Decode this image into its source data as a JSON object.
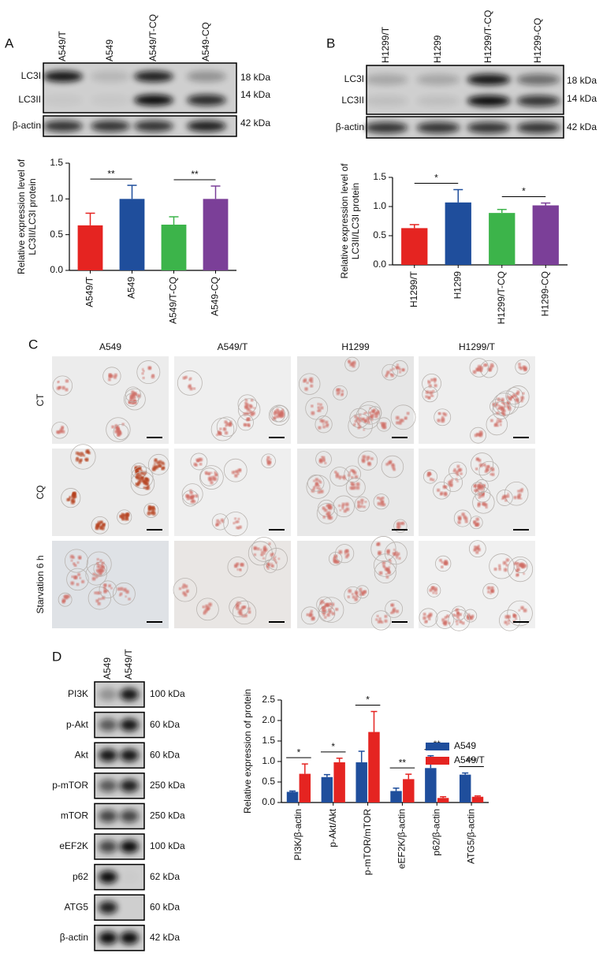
{
  "panel_labels": [
    "A",
    "B",
    "C",
    "D"
  ],
  "blots": [
    {
      "lanes": [
        "A549/T",
        "A549",
        "A549/T-CQ",
        "A549-CQ"
      ],
      "bands": [
        "LC3I",
        "LC3II",
        "β-actin"
      ],
      "sizes": [
        "18 kDa",
        "14 kDa",
        "42 kDa"
      ]
    },
    {
      "lanes": [
        "H1299/T",
        "H1299",
        "H1299/T-CQ",
        "H1299-CQ"
      ],
      "bands": [
        "LC3I",
        "LC3II",
        "β-actin"
      ],
      "sizes": [
        "18 kDa",
        "14 kDa",
        "42 kDa"
      ]
    },
    {
      "lanes": [
        "A549",
        "A549/T"
      ],
      "bands": [
        "PI3K",
        "p-Akt",
        "Akt",
        "p-mTOR",
        "mTOR",
        "eEF2K",
        "p62",
        "ATG5",
        "β-actin"
      ],
      "sizes": [
        "100 kDa",
        "60 kDa",
        "60 kDa",
        "250 kDa",
        "250 kDa",
        "100 kDa",
        "62 kDa",
        "60 kDa",
        "42 kDa"
      ]
    }
  ],
  "micrographs": {
    "columns": [
      "A549",
      "A549/T",
      "H1299",
      "H1299/T"
    ],
    "rows": [
      "CT",
      "CQ",
      "Starvation 6 h"
    ]
  },
  "chart_data": [
    {
      "type": "bar",
      "categories": [
        "A549/T",
        "A549",
        "A549/T-CQ",
        "A549-CQ"
      ],
      "values": [
        0.63,
        1.0,
        0.64,
        1.0
      ],
      "errors": [
        0.17,
        0.19,
        0.11,
        0.18
      ],
      "colors": [
        "#e52421",
        "#1f4e9c",
        "#3cb44a",
        "#7b3f98"
      ],
      "ylabel": [
        "Relative expression level of",
        "LC3II/LC3I protein"
      ],
      "ylim": [
        0,
        1.5
      ],
      "yticks": [
        {
          "value": 0,
          "label": "0.0"
        },
        0.5,
        {
          "value": 1,
          "label": "1.0"
        },
        1.5
      ],
      "annotations": [
        "**",
        "**"
      ]
    },
    {
      "type": "bar",
      "categories": [
        "H1299/T",
        "H1299",
        "H1299/T-CQ",
        "H1299-CQ"
      ],
      "values": [
        0.63,
        1.07,
        0.89,
        1.02
      ],
      "errors": [
        0.06,
        0.22,
        0.06,
        0.04
      ],
      "colors": [
        "#e52421",
        "#1f4e9c",
        "#3cb44a",
        "#7b3f98"
      ],
      "ylabel": [
        "Relative expression level of",
        "LC3II/LC3I protein"
      ],
      "ylim": [
        0,
        1.5
      ],
      "yticks": [
        {
          "value": 0,
          "label": "0.0"
        },
        0.5,
        {
          "value": 1,
          "label": "1.0"
        },
        1.5
      ],
      "annotations": [
        "*",
        "*"
      ]
    },
    {
      "type": "grouped_bar",
      "categories": [
        "PI3K/β-actin",
        "p-Akt/Akt",
        "p-mTOR/mTOR",
        "eEF2K/β-actin",
        "p62/β-actin",
        "ATG5/β-actin"
      ],
      "series": [
        {
          "name": "A549",
          "color": "#1f4e9c",
          "values": [
            0.26,
            0.62,
            0.98,
            0.28,
            0.84,
            0.68
          ],
          "errors": [
            0.02,
            0.06,
            0.27,
            0.07,
            0.3,
            0.04
          ]
        },
        {
          "name": "A549/T",
          "color": "#e52421",
          "values": [
            0.7,
            0.98,
            1.72,
            0.57,
            0.11,
            0.14
          ],
          "errors": [
            0.24,
            0.1,
            0.5,
            0.12,
            0.03,
            0.02
          ]
        }
      ],
      "ylabel": "Relative expression of protein",
      "ylim": [
        0,
        2.5
      ],
      "yticks": [
        {
          "value": 0,
          "label": "0.0"
        },
        0.5,
        {
          "value": 1,
          "label": "1.0"
        },
        1.5,
        {
          "value": 2,
          "label": "2.0"
        },
        2.5
      ],
      "annotations": [
        "*",
        "*",
        "*",
        "**",
        "**",
        "***"
      ],
      "legend": "upper right"
    }
  ]
}
